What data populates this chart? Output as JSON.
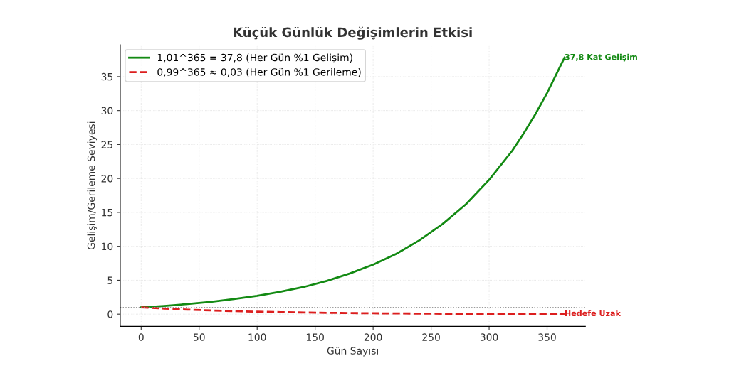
{
  "chart_data": {
    "type": "line",
    "title": "Küçük Günlük Değişimlerin Etkisi",
    "xlabel": "Gün Sayısı",
    "ylabel": "Gelişim/Gerileme Seviyesi",
    "xlim": [
      -18,
      383
    ],
    "ylim": [
      -1.8,
      39.7
    ],
    "xticks": [
      0,
      50,
      100,
      150,
      200,
      250,
      300,
      350
    ],
    "yticks": [
      0,
      5,
      10,
      15,
      20,
      25,
      30,
      35
    ],
    "grid": true,
    "legend": "top left",
    "marker": "none",
    "x": [
      0,
      20,
      40,
      60,
      80,
      100,
      120,
      140,
      160,
      180,
      200,
      220,
      240,
      260,
      280,
      300,
      320,
      330,
      340,
      350,
      365
    ],
    "series": [
      {
        "name": "1,01^365 = 37,8 (Her Gün %1 Gelişim)",
        "color": "#138a13",
        "line_style": "solid",
        "values": [
          1,
          1.22,
          1.49,
          1.82,
          2.22,
          2.7,
          3.3,
          4.0,
          4.9,
          6.0,
          7.3,
          8.9,
          10.9,
          13.3,
          16.2,
          19.8,
          24.1,
          26.7,
          29.5,
          32.6,
          37.8
        ]
      },
      {
        "name": "0,99^365 ≈ 0,03 (Her Gün %1 Gerileme)",
        "color": "#dc1e1e",
        "line_style": "dashed",
        "values": [
          1,
          0.82,
          0.67,
          0.55,
          0.45,
          0.37,
          0.3,
          0.24,
          0.2,
          0.16,
          0.13,
          0.11,
          0.09,
          0.07,
          0.06,
          0.05,
          0.04,
          0.04,
          0.03,
          0.03,
          0.03
        ]
      }
    ],
    "ref_lines": [
      {
        "axis": "y",
        "value": 1,
        "color": "#999999",
        "line_style": "dotted"
      }
    ],
    "annotations": [
      {
        "text": "37,8 Kat Gelişim",
        "x": 365,
        "y": 37.8
      },
      {
        "text": "Hedefe Uzak",
        "x": 365,
        "y": 0.03
      }
    ]
  }
}
